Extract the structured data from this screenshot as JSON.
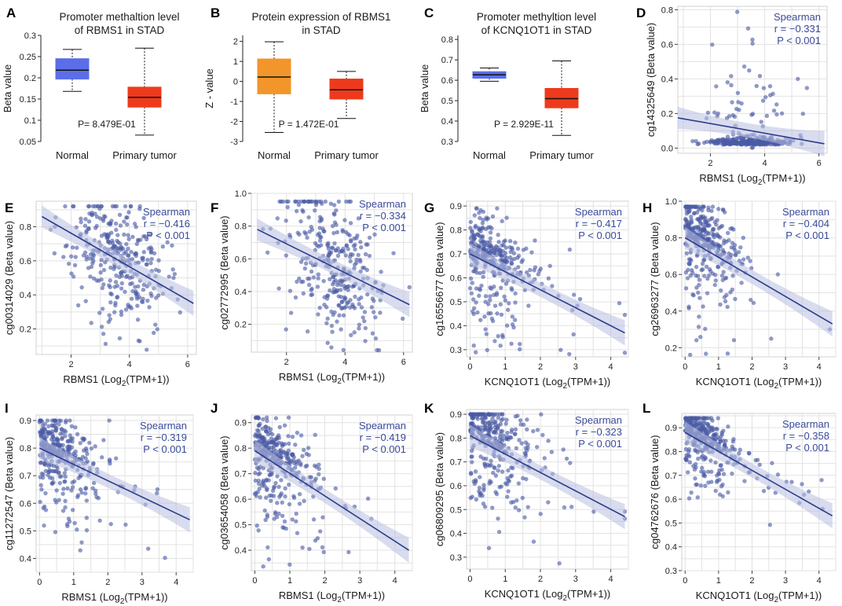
{
  "colors": {
    "normal_box": "#5b6ee8",
    "tumor_box": "#ee3a1c",
    "orange_box": "#f2952a",
    "scatter_point": "#4a5aa5",
    "fit_line": "#2c3c8c",
    "confidence_band": "#b8c0e0",
    "stat_text": "#3a4a9a"
  },
  "chart_data": [
    {
      "panel": "A",
      "type": "box",
      "title": "Promoter methaltion level of RBMS1 in STAD",
      "title_lines": [
        "Promoter methaltion level",
        "of RBMS1 in STAD"
      ],
      "ylabel": "Beta value",
      "yticks": [
        "0.05",
        "0.1",
        "0.15",
        "0.2",
        "0.25",
        "0.3"
      ],
      "ylim": [
        0.05,
        0.3
      ],
      "categories": [
        "Normal",
        "Primary tumor"
      ],
      "boxes": [
        {
          "name": "Normal",
          "min": 0.168,
          "q1": 0.197,
          "median": 0.218,
          "q3": 0.245,
          "max": 0.267,
          "color": "normal"
        },
        {
          "name": "Primary tumor",
          "min": 0.065,
          "q1": 0.131,
          "median": 0.154,
          "q3": 0.178,
          "max": 0.27,
          "color": "tumor"
        }
      ],
      "p_text": "P= 8.479E-01"
    },
    {
      "panel": "B",
      "type": "box",
      "title": "Protein expression of RBMS1 in STAD",
      "title_lines": [
        "Protein expression of RBMS1",
        "in STAD"
      ],
      "ylabel": "Z - value",
      "yticks": [
        "-3",
        "-2",
        "-1",
        "0",
        "1",
        "2"
      ],
      "ylim": [
        -3,
        2.3
      ],
      "categories": [
        "Normal",
        "Primary tumor"
      ],
      "boxes": [
        {
          "name": "Normal",
          "min": -2.55,
          "q1": -0.62,
          "median": 0.22,
          "q3": 1.12,
          "max": 1.98,
          "color": "orange"
        },
        {
          "name": "Primary tumor",
          "min": -1.85,
          "q1": -0.88,
          "median": -0.42,
          "q3": 0.12,
          "max": 0.5,
          "color": "tumor"
        }
      ],
      "p_text": "P = 1.472E-01"
    },
    {
      "panel": "C",
      "type": "box",
      "title": "Promoter methyltion level of KCNQ1OT1 in STAD",
      "title_lines": [
        "Promoter methyltion level",
        "of KCNQ1OT1 in STAD"
      ],
      "ylabel": "Beta value",
      "yticks": [
        "0.3",
        "0.4",
        "0.5",
        "0.6",
        "0.7",
        "0.8"
      ],
      "ylim": [
        0.3,
        0.82
      ],
      "categories": [
        "Normal",
        "Primary tumor"
      ],
      "boxes": [
        {
          "name": "Normal",
          "min": 0.595,
          "q1": 0.61,
          "median": 0.627,
          "q3": 0.642,
          "max": 0.66,
          "color": "normal"
        },
        {
          "name": "Primary tumor",
          "min": 0.33,
          "q1": 0.465,
          "median": 0.51,
          "q3": 0.56,
          "max": 0.695,
          "color": "tumor"
        }
      ],
      "p_text": "P = 2.929E-11"
    },
    {
      "panel": "D",
      "type": "scatter",
      "ylabel": "cg14325649 (Beta value)",
      "xlabel_main": "RBMS1",
      "xlabel_sub": "(Log",
      "xlabel_2": "2",
      "xlabel_end": "(TPM+1))",
      "xticks": [
        2,
        4,
        6
      ],
      "yticks": [
        0.0,
        0.2,
        0.4,
        0.6,
        0.8
      ],
      "xlim": [
        0.8,
        6.3
      ],
      "ylim": [
        -0.03,
        0.82
      ],
      "fit": {
        "x0": 0.8,
        "y0": 0.175,
        "x1": 6.2,
        "y1": 0.025
      },
      "spearman": "Spearman",
      "r": "r = −0.331",
      "p": "P < 0.001",
      "cloud": {
        "xc": 3.5,
        "xs": 0.8,
        "base": 0.02,
        "spread": 0.06,
        "outlier_top": 0.8,
        "n": 300,
        "seed": 11,
        "mode": "floor"
      }
    },
    {
      "panel": "E",
      "type": "scatter",
      "ylabel": "cg00314029 (Beta value)",
      "xlabel_main": "RBMS1",
      "xlabel_sub": "(Log",
      "xlabel_2": "2",
      "xlabel_end": "(TPM+1))",
      "xticks": [
        2,
        4,
        6
      ],
      "yticks": [
        0.2,
        0.4,
        0.6,
        0.8
      ],
      "xlim": [
        0.8,
        6.3
      ],
      "ylim": [
        0.05,
        0.95
      ],
      "fit": {
        "x0": 1.0,
        "y0": 0.86,
        "x1": 6.2,
        "y1": 0.35
      },
      "spearman": "Spearman",
      "r": "r = −0.416",
      "p": "P < 0.001",
      "cloud": {
        "xc": 3.6,
        "xs": 0.85,
        "base": 0.0,
        "spread": 0.18,
        "outlier_top": 0.92,
        "n": 320,
        "seed": 23,
        "mode": "line"
      }
    },
    {
      "panel": "F",
      "type": "scatter",
      "ylabel": "cg02772995 (Beta value)",
      "xlabel_main": "RBMS1",
      "xlabel_sub": "(Log",
      "xlabel_2": "2",
      "xlabel_end": "(TPM+1))",
      "xticks": [
        2,
        4,
        6
      ],
      "yticks": [
        0.2,
        0.4,
        0.6,
        0.8,
        1.0
      ],
      "xlim": [
        0.8,
        6.3
      ],
      "ylim": [
        0.03,
        1.0
      ],
      "fit": {
        "x0": 1.0,
        "y0": 0.78,
        "x1": 6.2,
        "y1": 0.32
      },
      "spearman": "Spearman",
      "r": "r = −0.334",
      "p": "P < 0.001",
      "cloud": {
        "xc": 3.6,
        "xs": 0.9,
        "base": 0.0,
        "spread": 0.22,
        "outlier_top": 0.95,
        "n": 320,
        "seed": 37,
        "mode": "line"
      }
    },
    {
      "panel": "G",
      "type": "scatter",
      "ylabel": "cg16556677 (Beta value)",
      "xlabel_main": "KCNQ1OT1",
      "xlabel_sub": "(Log",
      "xlabel_2": "2",
      "xlabel_end": "(TPM+1))",
      "xticks": [
        0,
        1,
        2,
        3,
        4
      ],
      "yticks": [
        0.3,
        0.4,
        0.5,
        0.6,
        0.7,
        0.8,
        0.9
      ],
      "xlim": [
        -0.1,
        4.5
      ],
      "ylim": [
        0.27,
        0.92
      ],
      "fit": {
        "x0": 0.0,
        "y0": 0.7,
        "x1": 4.4,
        "y1": 0.37
      },
      "spearman": "Spearman",
      "r": "r = −0.417",
      "p": "P < 0.001",
      "cloud": {
        "xc": 0.9,
        "xs": 0.8,
        "base": 0.0,
        "spread": 0.1,
        "outlier_top": 0.89,
        "n": 340,
        "seed": 41,
        "mode": "skew"
      }
    },
    {
      "panel": "H",
      "type": "scatter",
      "ylabel": "cg26963277 (Beta value)",
      "xlabel_main": "KCNQ1OT1",
      "xlabel_sub": "(Log",
      "xlabel_2": "2",
      "xlabel_end": "(TPM+1))",
      "xticks": [
        0,
        1,
        2,
        3,
        4
      ],
      "yticks": [
        0.2,
        0.4,
        0.6,
        0.8,
        1.0
      ],
      "xlim": [
        -0.1,
        4.5
      ],
      "ylim": [
        0.15,
        1.0
      ],
      "fit": {
        "x0": 0.0,
        "y0": 0.8,
        "x1": 4.4,
        "y1": 0.33
      },
      "spearman": "Spearman",
      "r": "r = −0.404",
      "p": "P < 0.001",
      "cloud": {
        "xc": 0.9,
        "xs": 0.8,
        "base": 0.0,
        "spread": 0.14,
        "outlier_top": 0.97,
        "n": 340,
        "seed": 53,
        "mode": "skew"
      }
    },
    {
      "panel": "I",
      "type": "scatter",
      "ylabel": "cg11272547 (Beta value)",
      "xlabel_main": "RBMS1",
      "xlabel_sub": "(Log",
      "xlabel_2": "2",
      "xlabel_end": "(TPM+1))",
      "xticks": [
        0,
        1,
        2,
        3,
        4
      ],
      "yticks": [
        0.4,
        0.5,
        0.6,
        0.7,
        0.8,
        0.9
      ],
      "xlim": [
        -0.1,
        4.5
      ],
      "ylim": [
        0.35,
        0.92
      ],
      "fit": {
        "x0": 0.0,
        "y0": 0.8,
        "x1": 4.4,
        "y1": 0.54
      },
      "spearman": "Spearman",
      "r": "r = −0.319",
      "p": "P < 0.001",
      "cloud": {
        "xc": 0.9,
        "xs": 0.8,
        "base": 0.0,
        "spread": 0.08,
        "outlier_top": 0.9,
        "n": 340,
        "seed": 61,
        "mode": "skew"
      }
    },
    {
      "panel": "J",
      "type": "scatter",
      "ylabel": "cg03654058 (Beta value)",
      "xlabel_main": "RBMS1",
      "xlabel_sub": "(Log",
      "xlabel_2": "2",
      "xlabel_end": "(TPM+1))",
      "xticks": [
        0,
        1,
        2,
        3,
        4
      ],
      "yticks": [
        0.4,
        0.5,
        0.6,
        0.7,
        0.8,
        0.9
      ],
      "xlim": [
        -0.1,
        4.5
      ],
      "ylim": [
        0.32,
        0.93
      ],
      "fit": {
        "x0": 0.0,
        "y0": 0.79,
        "x1": 4.4,
        "y1": 0.4
      },
      "spearman": "Spearman",
      "r": "r = −0.419",
      "p": "P < 0.001",
      "cloud": {
        "xc": 0.9,
        "xs": 0.8,
        "base": 0.0,
        "spread": 0.09,
        "outlier_top": 0.92,
        "n": 340,
        "seed": 71,
        "mode": "skew"
      }
    },
    {
      "panel": "K",
      "type": "scatter",
      "ylabel": "cg06809295 (Beta value)",
      "xlabel_main": "KCNQ1OT1",
      "xlabel_sub": "(Log",
      "xlabel_2": "2",
      "xlabel_end": "(TPM+1))",
      "xticks": [
        0,
        1,
        2,
        3,
        4
      ],
      "yticks": [
        0.3,
        0.4,
        0.5,
        0.6,
        0.7,
        0.8,
        0.9
      ],
      "xlim": [
        -0.1,
        4.5
      ],
      "ylim": [
        0.25,
        0.92
      ],
      "fit": {
        "x0": 0.0,
        "y0": 0.81,
        "x1": 4.4,
        "y1": 0.47
      },
      "spearman": "Spearman",
      "r": "r = −0.323",
      "p": "P < 0.001",
      "cloud": {
        "xc": 0.9,
        "xs": 0.8,
        "base": 0.0,
        "spread": 0.11,
        "outlier_top": 0.9,
        "n": 340,
        "seed": 83,
        "mode": "skew"
      }
    },
    {
      "panel": "L",
      "type": "scatter",
      "ylabel": "cg04762676 (Beta value)",
      "xlabel_main": "KCNQ1OT1",
      "xlabel_sub": "(Log",
      "xlabel_2": "2",
      "xlabel_end": "(TPM+1))",
      "xticks": [
        0,
        1,
        2,
        3,
        4
      ],
      "yticks": [
        0.3,
        0.4,
        0.5,
        0.6,
        0.7,
        0.8,
        0.9
      ],
      "xlim": [
        -0.1,
        4.5
      ],
      "ylim": [
        0.3,
        0.96
      ],
      "fit": {
        "x0": 0.0,
        "y0": 0.88,
        "x1": 4.4,
        "y1": 0.53
      },
      "spearman": "Spearman",
      "r": "r = −0.358",
      "p": "P < 0.001",
      "cloud": {
        "xc": 0.9,
        "xs": 0.8,
        "base": 0.0,
        "spread": 0.07,
        "outlier_top": 0.94,
        "n": 340,
        "seed": 97,
        "mode": "skew"
      }
    }
  ]
}
